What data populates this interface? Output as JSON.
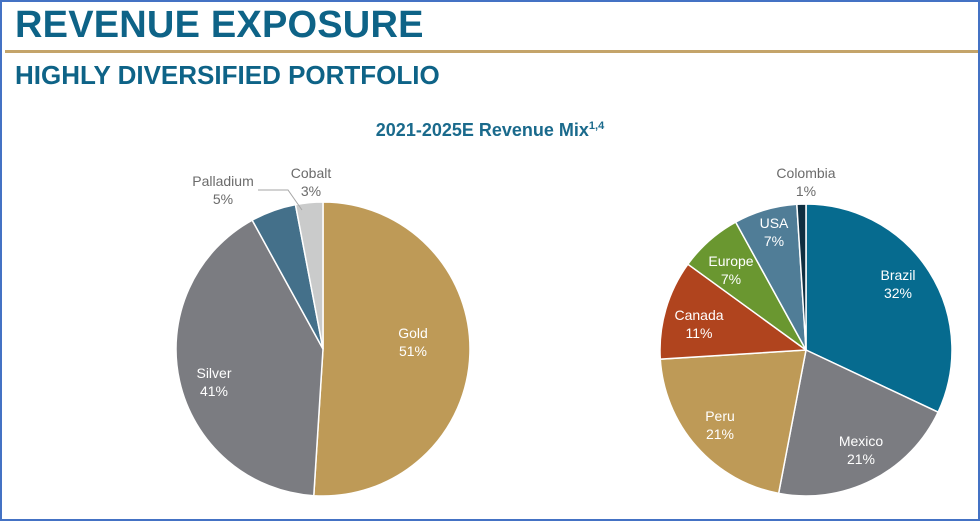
{
  "header": {
    "title": "REVENUE EXPOSURE",
    "subtitle": "HIGHLY DIVERSIFIED PORTFOLIO"
  },
  "chart_header": {
    "title": "2021-2025E Revenue Mix",
    "superscript": "1,4"
  },
  "chart_data": [
    {
      "type": "pie",
      "title": "2021-2025E Revenue Mix by Commodity",
      "categories": [
        "Gold",
        "Silver",
        "Palladium",
        "Cobalt"
      ],
      "values": [
        51,
        41,
        5,
        3
      ],
      "labels": [
        "51%",
        "41%",
        "5%",
        "3%"
      ],
      "colors": [
        "#BE9A57",
        "#7B7C81",
        "#44708A",
        "#CACBCB"
      ],
      "label_colors": [
        "#FFFFFF",
        "#FFFFFF",
        "#6B6B6B",
        "#6B6B6B"
      ],
      "start": "top",
      "direction": "clockwise",
      "order_clockwise_from_top": [
        "Gold",
        "Silver",
        "Palladium",
        "Cobalt"
      ]
    },
    {
      "type": "pie",
      "title": "2021-2025E Revenue Mix by Country",
      "categories": [
        "Brazil",
        "Mexico",
        "Peru",
        "Canada",
        "Europe",
        "USA",
        "Colombia"
      ],
      "values": [
        32,
        21,
        21,
        11,
        7,
        7,
        1
      ],
      "labels": [
        "32%",
        "21%",
        "21%",
        "11%",
        "7%",
        "7%",
        "1%"
      ],
      "colors": [
        "#066B8F",
        "#7B7C81",
        "#BE9A57",
        "#B0441E",
        "#6A9730",
        "#507D97",
        "#0F2E40"
      ],
      "label_colors": [
        "#FFFFFF",
        "#FFFFFF",
        "#FFFFFF",
        "#FFFFFF",
        "#FFFFFF",
        "#FFFFFF",
        "#6B6B6B"
      ],
      "start": "top",
      "direction": "clockwise"
    }
  ]
}
